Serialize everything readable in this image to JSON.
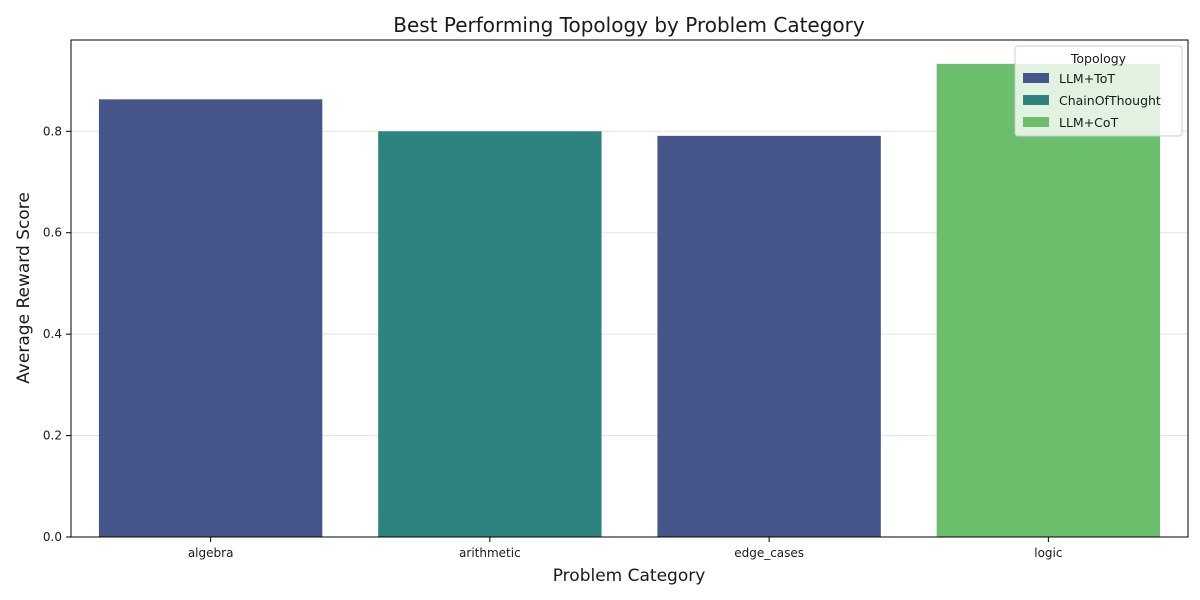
{
  "chart_data": {
    "type": "bar",
    "title": "Best Performing Topology by Problem Category",
    "xlabel": "Problem Category",
    "ylabel": "Average Reward Score",
    "categories": [
      "algebra",
      "arithmetic",
      "edge_cases",
      "logic"
    ],
    "values": [
      0.863,
      0.8,
      0.791,
      0.933
    ],
    "bar_topology": [
      "LLM+ToT",
      "ChainOfThought",
      "LLM+ToT",
      "LLM+CoT"
    ],
    "ylim": [
      0,
      0.98
    ],
    "yticks": [
      0.0,
      0.2,
      0.4,
      0.6,
      0.8
    ],
    "ytick_labels": [
      "0.0",
      "0.2",
      "0.4",
      "0.6",
      "0.8"
    ],
    "grid": "horizontal",
    "legend": {
      "title": "Topology",
      "placement": "top-right",
      "entries": [
        {
          "label": "LLM+ToT",
          "color": "#46568a"
        },
        {
          "label": "ChainOfThought",
          "color": "#2f837f"
        },
        {
          "label": "LLM+CoT",
          "color": "#6abe6c"
        }
      ]
    }
  }
}
